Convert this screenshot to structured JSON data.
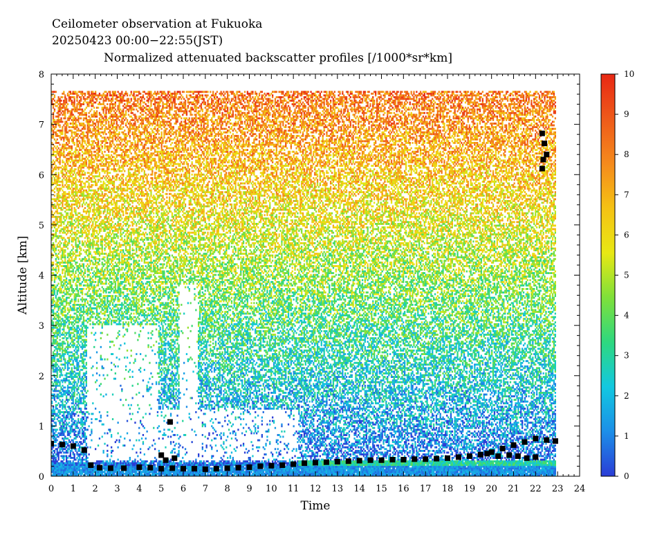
{
  "chart_data": {
    "type": "heatmap",
    "title_lines": [
      "Ceilometer observation at Fukuoka",
      "20250423  00:00−22:55(JST)",
      "Normalized attenuated backscatter profiles [/1000*sr*km]"
    ],
    "xlabel": "Time",
    "ylabel": "Altitude [km]",
    "xlim": [
      0,
      24
    ],
    "ylim": [
      0,
      8
    ],
    "x_ticks": [
      "0",
      "1",
      "2",
      "3",
      "4",
      "5",
      "6",
      "7",
      "8",
      "9",
      "10",
      "11",
      "12",
      "13",
      "14",
      "15",
      "16",
      "17",
      "18",
      "19",
      "20",
      "21",
      "22",
      "23",
      "24"
    ],
    "y_ticks": [
      "0",
      "1",
      "2",
      "3",
      "4",
      "5",
      "6",
      "7",
      "8"
    ],
    "data_extent": {
      "time_start": 0,
      "time_end": 22.9167,
      "altitude_top": 7.65
    },
    "colorbar": {
      "range": [
        0,
        10
      ],
      "ticks": [
        "0",
        "1",
        "2",
        "3",
        "4",
        "5",
        "6",
        "7",
        "8",
        "9",
        "10"
      ],
      "colors": [
        "#2b3dd6",
        "#1c8fe8",
        "#12c8e0",
        "#2ed87f",
        "#7fe03a",
        "#e8e814",
        "#f5c214",
        "#f58a1c",
        "#ee5a1a",
        "#e82814"
      ]
    },
    "series": [
      {
        "marker": "square",
        "color": "#000000",
        "x": [
          0.0,
          0.5,
          1.0,
          1.5,
          1.8,
          2.2,
          2.7,
          3.3,
          4.0,
          4.5,
          5.0,
          5.5,
          6.0,
          6.5,
          7.0,
          7.5,
          8.0,
          8.5,
          9.0,
          9.5,
          10.0,
          10.5,
          11.0,
          11.5,
          12.0,
          12.5,
          13.0,
          13.5,
          14.0,
          14.5,
          15.0,
          15.5,
          16.0,
          16.5,
          17.0,
          17.5,
          18.0,
          18.5,
          19.0,
          19.5,
          20.0,
          20.5,
          21.0,
          21.5,
          22.0,
          22.5,
          22.9
        ],
        "y": [
          0.65,
          0.63,
          0.6,
          0.52,
          0.22,
          0.17,
          0.16,
          0.16,
          0.18,
          0.17,
          0.15,
          0.16,
          0.15,
          0.15,
          0.14,
          0.15,
          0.16,
          0.17,
          0.18,
          0.2,
          0.21,
          0.22,
          0.24,
          0.26,
          0.27,
          0.28,
          0.29,
          0.3,
          0.31,
          0.32,
          0.32,
          0.33,
          0.33,
          0.34,
          0.34,
          0.35,
          0.36,
          0.38,
          0.4,
          0.43,
          0.48,
          0.55,
          0.62,
          0.68,
          0.75,
          0.72,
          0.7
        ]
      },
      {
        "marker": "square",
        "color": "#000000",
        "x": [
          5.0,
          5.2,
          5.4,
          5.6,
          19.8,
          20.3,
          20.8,
          21.2,
          21.6,
          22.0,
          22.3,
          22.4,
          22.5,
          22.35,
          22.3
        ],
        "y": [
          0.42,
          0.32,
          1.08,
          0.36,
          0.45,
          0.4,
          0.42,
          0.4,
          0.36,
          0.38,
          6.82,
          6.62,
          6.4,
          6.3,
          6.12
        ]
      }
    ]
  }
}
